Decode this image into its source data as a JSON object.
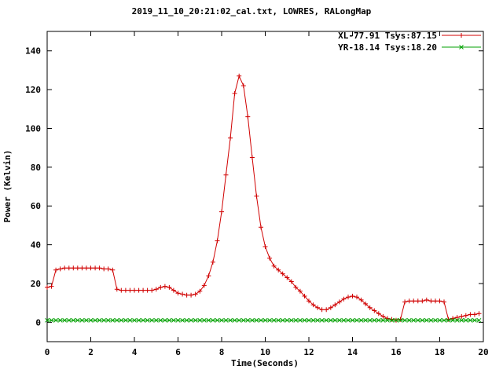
{
  "chart_data": {
    "type": "line",
    "title": "2019_11_10_20:21:02_cal.txt, LOWRES, RALongMap",
    "xlabel": "Time(Seconds)",
    "ylabel": "Power (Kelvin)",
    "xlim": [
      0,
      20
    ],
    "ylim": [
      -10,
      150
    ],
    "xticks": [
      0,
      2,
      4,
      6,
      8,
      10,
      12,
      14,
      16,
      18,
      20
    ],
    "yticks": [
      0,
      20,
      40,
      60,
      80,
      100,
      120,
      140
    ],
    "grid": false,
    "legend_position": "top-right-inside",
    "x": [
      0,
      0.2,
      0.4,
      0.6,
      0.8,
      1.0,
      1.2,
      1.4,
      1.6,
      1.8,
      2.0,
      2.2,
      2.4,
      2.6,
      2.8,
      3.0,
      3.2,
      3.4,
      3.6,
      3.8,
      4.0,
      4.2,
      4.4,
      4.6,
      4.8,
      5.0,
      5.2,
      5.4,
      5.6,
      5.8,
      6.0,
      6.2,
      6.4,
      6.6,
      6.8,
      7.0,
      7.2,
      7.4,
      7.6,
      7.8,
      8.0,
      8.2,
      8.4,
      8.6,
      8.8,
      9.0,
      9.2,
      9.4,
      9.6,
      9.8,
      10.0,
      10.2,
      10.4,
      10.6,
      10.8,
      11.0,
      11.2,
      11.4,
      11.6,
      11.8,
      12.0,
      12.2,
      12.4,
      12.6,
      12.8,
      13.0,
      13.2,
      13.4,
      13.6,
      13.8,
      14.0,
      14.2,
      14.4,
      14.6,
      14.8,
      15.0,
      15.2,
      15.4,
      15.6,
      15.8,
      16.0,
      16.2,
      16.4,
      16.6,
      16.8,
      17.0,
      17.2,
      17.4,
      17.6,
      17.8,
      18.0,
      18.2,
      18.4,
      18.6,
      18.8,
      19.0,
      19.2,
      19.4,
      19.6,
      19.8
    ],
    "series": [
      {
        "name": "XL-77.91 Tsys:87.15",
        "color": "#d00000",
        "marker": "plus",
        "values": [
          18,
          18.5,
          27,
          27.5,
          28,
          28,
          28,
          28,
          28,
          28,
          28,
          28,
          28,
          27.5,
          27.5,
          27,
          17,
          16.5,
          16.5,
          16.5,
          16.5,
          16.5,
          16.5,
          16.5,
          16.5,
          17,
          18,
          18.5,
          18,
          16.5,
          15,
          14.5,
          14,
          14,
          14.5,
          16,
          19,
          24,
          31,
          42,
          57,
          76,
          95,
          118,
          127,
          122,
          106,
          85,
          65,
          49,
          39,
          33,
          29,
          27,
          25,
          23,
          21,
          18,
          16,
          13.5,
          11,
          9,
          7.5,
          6.5,
          6.5,
          7.5,
          9,
          10.5,
          12,
          13,
          13.5,
          13,
          11.5,
          9.5,
          7.5,
          6,
          4.5,
          3,
          2,
          1.5,
          1,
          1.5,
          10.5,
          11,
          11,
          11,
          11,
          11.5,
          11,
          11,
          11,
          10.5,
          1.5,
          2,
          2.5,
          3,
          3.5,
          4,
          4,
          4.5
        ]
      },
      {
        "name": "YR-18.14 Tsys:18.20",
        "color": "#00a000",
        "marker": "x",
        "values": [
          1,
          1,
          1,
          1,
          1,
          1,
          1,
          1,
          1,
          1,
          1,
          1,
          1,
          1,
          1,
          1,
          1,
          1,
          1,
          1,
          1,
          1,
          1,
          1,
          1,
          1,
          1,
          1,
          1,
          1,
          1,
          1,
          1,
          1,
          1,
          1,
          1,
          1,
          1,
          1,
          1,
          1,
          1,
          1,
          1,
          1,
          1,
          1,
          1,
          1,
          1,
          1,
          1,
          1,
          1,
          1,
          1,
          1,
          1,
          1,
          1,
          1,
          1,
          1,
          1,
          1,
          1,
          1,
          1,
          1,
          1,
          1,
          1,
          1,
          1,
          1,
          1,
          1,
          1,
          1,
          1,
          1,
          1,
          1,
          1,
          1,
          1,
          1,
          1,
          1,
          1,
          1,
          1,
          1,
          1,
          1,
          1,
          1,
          1,
          1
        ]
      }
    ]
  }
}
